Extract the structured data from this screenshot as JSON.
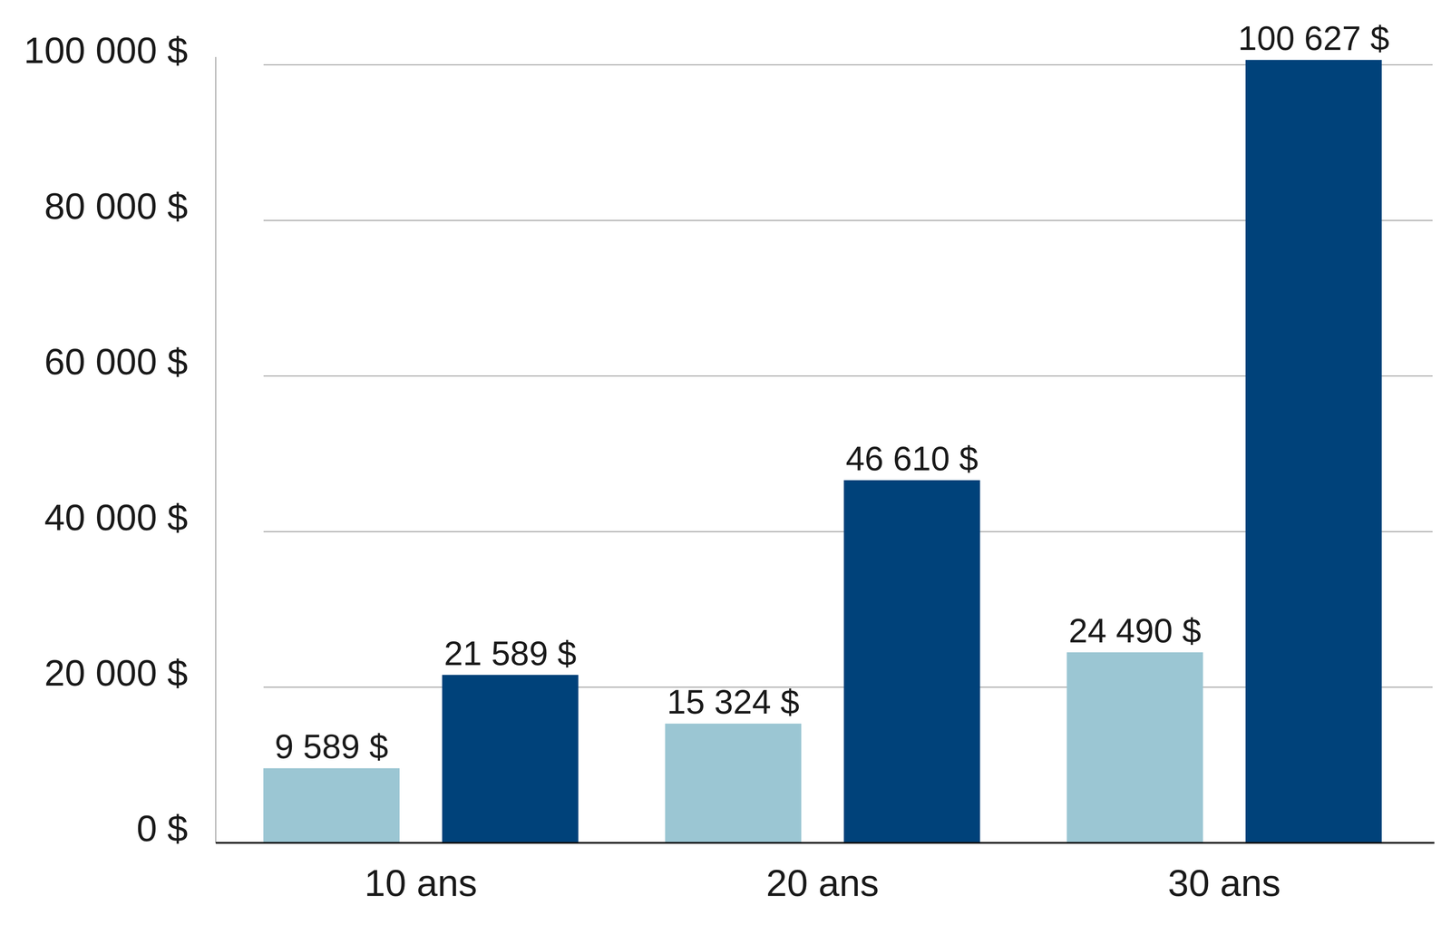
{
  "chart_data": {
    "type": "bar",
    "categories": [
      "10 ans",
      "20 ans",
      "30 ans"
    ],
    "series": [
      {
        "color": "#9bc6d3",
        "values": [
          9589,
          15324,
          24490
        ],
        "value_labels": [
          "9 589 $",
          "15 324 $",
          "24 490 $"
        ]
      },
      {
        "color": "#00427a",
        "values": [
          21589,
          46610,
          100627
        ],
        "value_labels": [
          "21 589 $",
          "46 610 $",
          "100 627 $"
        ]
      }
    ],
    "ylim": [
      0,
      101000
    ],
    "yticks": [
      {
        "value": 0,
        "label": "0 $"
      },
      {
        "value": 20000,
        "label": "20 000 $"
      },
      {
        "value": 40000,
        "label": "40 000 $"
      },
      {
        "value": 60000,
        "label": "60 000 $"
      },
      {
        "value": 80000,
        "label": "80 000 $"
      },
      {
        "value": 100000,
        "label": "100 000 $"
      }
    ],
    "grid": true,
    "data_labels": true
  }
}
